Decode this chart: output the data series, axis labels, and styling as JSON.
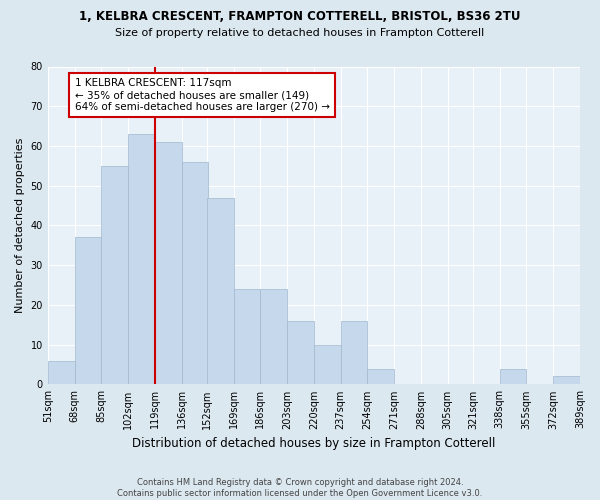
{
  "title1": "1, KELBRA CRESCENT, FRAMPTON COTTERELL, BRISTOL, BS36 2TU",
  "title2": "Size of property relative to detached houses in Frampton Cotterell",
  "xlabel": "Distribution of detached houses by size in Frampton Cotterell",
  "ylabel": "Number of detached properties",
  "footnote": "Contains HM Land Registry data © Crown copyright and database right 2024.\nContains public sector information licensed under the Open Government Licence v3.0.",
  "bins": [
    51,
    68,
    85,
    102,
    119,
    136,
    152,
    169,
    186,
    203,
    220,
    237,
    254,
    271,
    288,
    305,
    321,
    338,
    355,
    372,
    389
  ],
  "bar_heights": [
    6,
    37,
    55,
    63,
    61,
    56,
    47,
    24,
    24,
    16,
    10,
    16,
    4,
    0,
    0,
    0,
    0,
    4,
    0,
    2
  ],
  "bar_color": "#c6d9ec",
  "bar_edge_color": "#a0b8cc",
  "vline_x": 119,
  "vline_color": "#cc0000",
  "annotation_box_text": "1 KELBRA CRESCENT: 117sqm\n← 35% of detached houses are smaller (149)\n64% of semi-detached houses are larger (270) →",
  "annotation_box_edgecolor": "#cc0000",
  "annotation_box_facecolor": "#ffffff",
  "ylim": [
    0,
    80
  ],
  "yticks": [
    0,
    10,
    20,
    30,
    40,
    50,
    60,
    70,
    80
  ],
  "bg_color": "#dce8f0",
  "plot_bg_color": "#e8f0f8",
  "title1_fontsize": 8.5,
  "title2_fontsize": 8,
  "xlabel_fontsize": 8.5,
  "ylabel_fontsize": 8,
  "footnote_fontsize": 6,
  "tick_fontsize": 7,
  "annot_fontsize": 7.5
}
